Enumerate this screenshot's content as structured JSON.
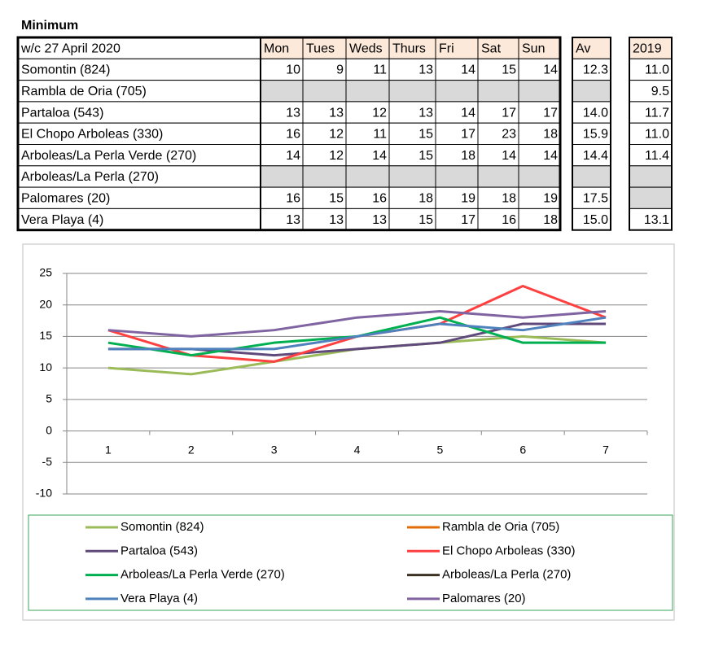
{
  "table": {
    "title": "Minimum",
    "header": [
      "w/c 27 April 2020",
      "Mon",
      "Tues",
      "Weds",
      "Thurs",
      "Fri",
      "Sat",
      "Sun",
      "Av",
      "2019"
    ],
    "rows": [
      [
        "Somontin (824)",
        "10",
        "9",
        "11",
        "13",
        "14",
        "15",
        "14",
        "12.3",
        "11.0"
      ],
      [
        "Rambla de Oria (705)",
        null,
        null,
        null,
        null,
        null,
        null,
        null,
        null,
        "9.5"
      ],
      [
        "Partaloa (543)",
        "13",
        "13",
        "12",
        "13",
        "14",
        "17",
        "17",
        "14.0",
        "11.7"
      ],
      [
        "El Chopo Arboleas (330)",
        "16",
        "12",
        "11",
        "15",
        "17",
        "23",
        "18",
        "15.9",
        "11.0"
      ],
      [
        "Arboleas/La Perla Verde (270)",
        "14",
        "12",
        "14",
        "15",
        "18",
        "14",
        "14",
        "14.4",
        "11.4"
      ],
      [
        "Arboleas/La Perla (270)",
        null,
        null,
        null,
        null,
        null,
        null,
        null,
        null,
        null
      ],
      [
        "Palomares (20)",
        "16",
        "15",
        "16",
        "18",
        "19",
        "18",
        "19",
        "17.5",
        null
      ],
      [
        "Vera Playa (4)",
        "13",
        "13",
        "13",
        "15",
        "17",
        "16",
        "18",
        "15.0",
        "13.1"
      ]
    ]
  },
  "chart_data": {
    "type": "line",
    "categories": [
      "1",
      "2",
      "3",
      "4",
      "5",
      "6",
      "7"
    ],
    "ylim": [
      -10,
      25
    ],
    "yticks": [
      -10,
      -5,
      0,
      5,
      10,
      15,
      20,
      25
    ],
    "grid": true,
    "series": [
      {
        "name": "Somontin (824)",
        "color": "#9bbb59",
        "values": [
          10,
          9,
          11,
          13,
          14,
          15,
          14
        ]
      },
      {
        "name": "Rambla de Oria (705)",
        "color": "#e36c09",
        "values": [
          null,
          null,
          null,
          null,
          null,
          null,
          null
        ]
      },
      {
        "name": "Partaloa (543)",
        "color": "#604a7b",
        "values": [
          13,
          13,
          12,
          13,
          14,
          17,
          17
        ]
      },
      {
        "name": "El Chopo Arboleas (330)",
        "color": "#ff4040",
        "values": [
          16,
          12,
          11,
          15,
          17,
          23,
          18
        ]
      },
      {
        "name": "Arboleas/La Perla Verde (270)",
        "color": "#00b050",
        "values": [
          14,
          12,
          14,
          15,
          18,
          14,
          14
        ]
      },
      {
        "name": "Arboleas/La Perla (270)",
        "color": "#3b3224",
        "values": [
          null,
          null,
          null,
          null,
          null,
          null,
          null
        ]
      },
      {
        "name": "Vera Playa (4)",
        "color": "#4f81bd",
        "values": [
          13,
          13,
          13,
          15,
          17,
          16,
          18
        ]
      },
      {
        "name": "Palomares (20)",
        "color": "#8064a2",
        "values": [
          16,
          15,
          16,
          18,
          19,
          18,
          19
        ]
      }
    ]
  }
}
